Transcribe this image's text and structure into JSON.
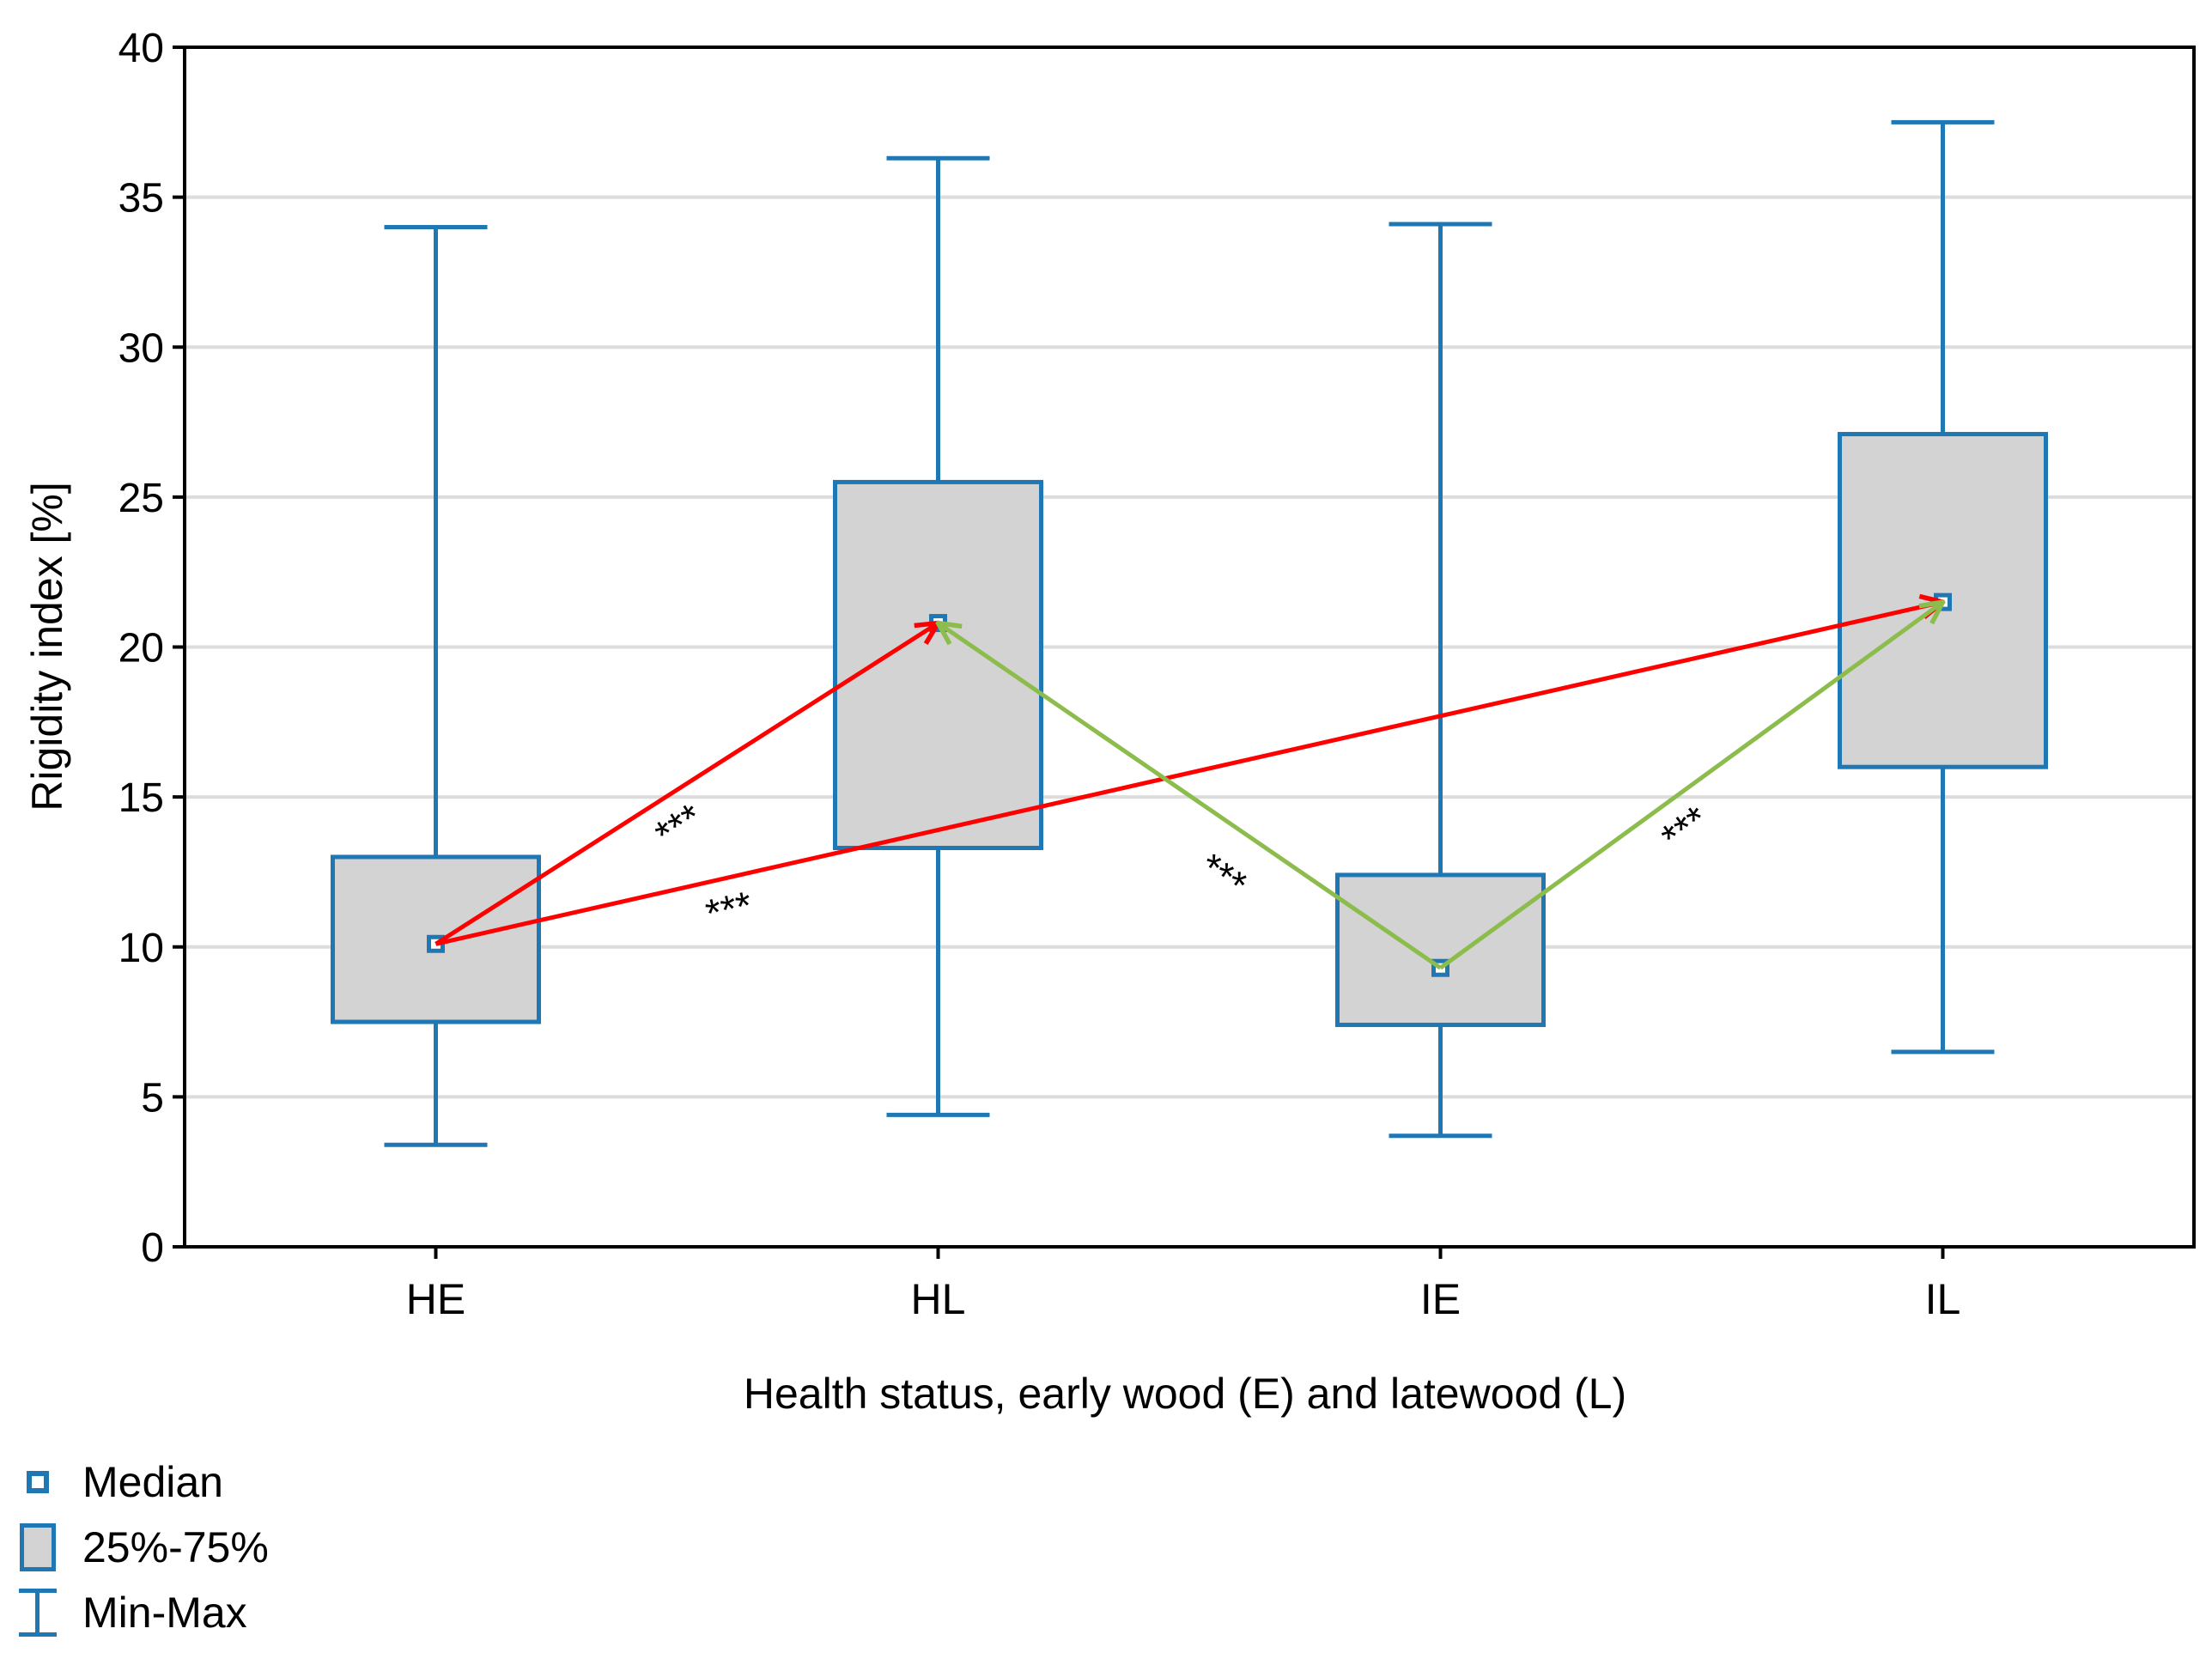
{
  "chart_data": {
    "type": "box",
    "xlabel": "Health status, early wood (E) and latewood (L)",
    "ylabel": "Rigidity index [%]",
    "ylim": [
      0,
      40
    ],
    "yticks": [
      0,
      5,
      10,
      15,
      20,
      25,
      30,
      35,
      40
    ],
    "grid": "horizontal",
    "categories": [
      "HE",
      "HL",
      "IE",
      "IL"
    ],
    "boxes": [
      {
        "category": "HE",
        "min": 3.4,
        "q1": 7.5,
        "median": 10.1,
        "q3": 13.0,
        "max": 34.0
      },
      {
        "category": "HL",
        "min": 4.4,
        "q1": 13.3,
        "median": 20.8,
        "q3": 25.5,
        "max": 36.3
      },
      {
        "category": "IE",
        "min": 3.7,
        "q1": 7.4,
        "median": 9.3,
        "q3": 12.4,
        "max": 34.1
      },
      {
        "category": "IL",
        "min": 6.5,
        "q1": 16.0,
        "median": 21.5,
        "q3": 27.1,
        "max": 37.5
      }
    ],
    "comparisons": [
      {
        "from": "HE",
        "to": "HL",
        "color": "#ff0000",
        "label": "***"
      },
      {
        "from": "HE",
        "to": "IL",
        "color": "#ff0000",
        "label": "***"
      },
      {
        "from": "IE",
        "to": "HL",
        "color": "#8cbd4c",
        "label": "***"
      },
      {
        "from": "IE",
        "to": "IL",
        "color": "#8cbd4c",
        "label": "***"
      }
    ],
    "colors": {
      "box_stroke": "#1f77b4",
      "box_fill": "#d3d3d3",
      "grid": "#dcdcdc",
      "red_arrow": "#ff0000",
      "green_arrow": "#8cbd4c"
    }
  },
  "legend": {
    "median": "Median",
    "iqr": "25%-75%",
    "minmax": "Min-Max"
  }
}
